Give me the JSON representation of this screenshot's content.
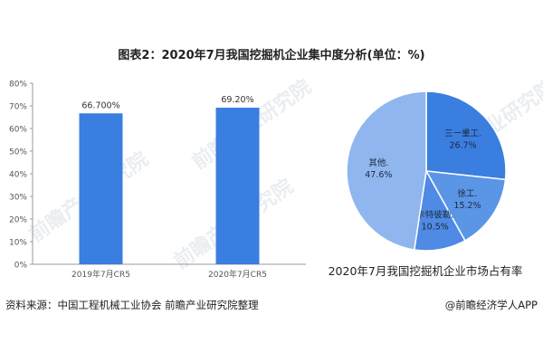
{
  "title": "图表2：2020年7月我国挖掘机企业集中度分析(单位：%)",
  "source": "资料来源：中国工程机械工业协会 前瞻产业研究院整理",
  "credit": "@前瞻经济学人APP",
  "watermark": "前瞻产业研究院",
  "colors": {
    "bar": "#3a7ee0",
    "pie": [
      "#3a7ee0",
      "#5b95e6",
      "#4f8ae4",
      "#8fb6ee"
    ]
  },
  "chart_data": [
    {
      "type": "bar",
      "categories": [
        "2019年7月CR5",
        "2020年7月CR5"
      ],
      "values": [
        66.7,
        69.2
      ],
      "data_labels": [
        "66.700%",
        "69.20%"
      ],
      "ylim": [
        0,
        80
      ],
      "yticks": [
        "0%",
        "10%",
        "20%",
        "30%",
        "40%",
        "50%",
        "60%",
        "70%",
        "80%"
      ],
      "grid": false
    },
    {
      "type": "pie",
      "title": "2020年7月我国挖掘机企业市场占有率",
      "slices": [
        {
          "name": "三一重工.",
          "value": 26.7,
          "label": "26.7%"
        },
        {
          "name": "徐工.",
          "value": 15.2,
          "label": "15.2%"
        },
        {
          "name": "卡特彼勒.",
          "value": 10.5,
          "label": "10.5%"
        },
        {
          "name": "其他.",
          "value": 47.6,
          "label": "47.6%"
        }
      ]
    }
  ]
}
